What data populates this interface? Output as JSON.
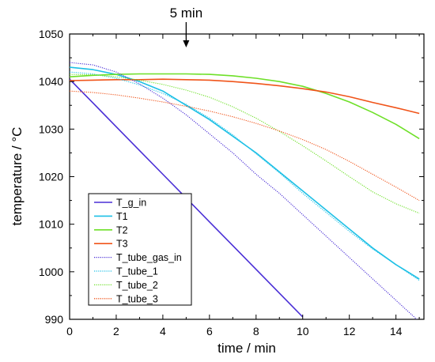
{
  "chart_data": {
    "type": "line",
    "xlabel": "time / min",
    "ylabel": "temperature / °C",
    "xlim": [
      0,
      15.2
    ],
    "ylim": [
      990,
      1050
    ],
    "xticks": [
      0,
      2,
      4,
      6,
      8,
      10,
      12,
      14
    ],
    "yticks": [
      990,
      1000,
      1010,
      1020,
      1030,
      1040,
      1050
    ],
    "annotation": {
      "label": "5 min",
      "x": 5
    },
    "legend_position": "bottom-left",
    "series": [
      {
        "name": "T_g_in",
        "style": "solid",
        "color": "#4a2fd6",
        "x": [
          0,
          1,
          2,
          3,
          4,
          5,
          6,
          7,
          8,
          9,
          10
        ],
        "y": [
          1040.5,
          1035.5,
          1030.5,
          1025.5,
          1020.5,
          1015.5,
          1010.5,
          1005.5,
          1000.5,
          995.5,
          990.5
        ]
      },
      {
        "name": "T1",
        "style": "solid",
        "color": "#1ec0e6",
        "x": [
          0,
          1,
          2,
          3,
          4,
          5,
          6,
          7,
          8,
          9,
          10,
          11,
          12,
          13,
          14,
          15
        ],
        "y": [
          1043.0,
          1042.5,
          1041.5,
          1040.0,
          1038.0,
          1035.0,
          1032.0,
          1028.5,
          1025.0,
          1021.0,
          1017.0,
          1013.0,
          1009.0,
          1005.0,
          1001.5,
          998.5
        ]
      },
      {
        "name": "T2",
        "style": "solid",
        "color": "#6ee028",
        "x": [
          0,
          1,
          2,
          3,
          4,
          5,
          6,
          7,
          8,
          9,
          10,
          11,
          12,
          13,
          14,
          15
        ],
        "y": [
          1041.0,
          1041.3,
          1041.5,
          1041.6,
          1041.6,
          1041.6,
          1041.5,
          1041.2,
          1040.7,
          1040.0,
          1039.0,
          1037.5,
          1035.7,
          1033.5,
          1031.0,
          1028.0
        ]
      },
      {
        "name": "T3",
        "style": "solid",
        "color": "#f0541a",
        "x": [
          0,
          1,
          2,
          3,
          4,
          5,
          6,
          7,
          8,
          9,
          10,
          11,
          12,
          13,
          14,
          15
        ],
        "y": [
          1040.2,
          1040.3,
          1040.4,
          1040.4,
          1040.5,
          1040.4,
          1040.3,
          1040.0,
          1039.6,
          1039.1,
          1038.5,
          1037.8,
          1036.8,
          1035.6,
          1034.5,
          1033.3
        ]
      },
      {
        "name": "T_tube_gas_in",
        "style": "dotted",
        "color": "#4a2fd6",
        "x": [
          0,
          1,
          2,
          3,
          4,
          5,
          6,
          7,
          8,
          9,
          10,
          11,
          12,
          13,
          14,
          15
        ],
        "y": [
          1044.0,
          1043.5,
          1042.0,
          1039.5,
          1036.5,
          1033.0,
          1029.0,
          1025.0,
          1020.5,
          1016.5,
          1012.0,
          1007.5,
          1003.0,
          998.5,
          994.0,
          989.5
        ]
      },
      {
        "name": "T_tube_1",
        "style": "dotted",
        "color": "#1ec0e6",
        "x": [
          0,
          1,
          2,
          3,
          4,
          5,
          6,
          7,
          8,
          9,
          10,
          11,
          12,
          13,
          14,
          15
        ],
        "y": [
          1042.0,
          1041.6,
          1040.7,
          1039.3,
          1037.5,
          1035.2,
          1032.3,
          1028.8,
          1024.8,
          1020.8,
          1016.5,
          1012.5,
          1008.5,
          1004.8,
          1001.5,
          998.2
        ]
      },
      {
        "name": "T_tube_2",
        "style": "dotted",
        "color": "#6ee028",
        "x": [
          0,
          1,
          2,
          3,
          4,
          5,
          6,
          7,
          8,
          9,
          10,
          11,
          12,
          13,
          14,
          15
        ],
        "y": [
          1041.5,
          1041.4,
          1041.0,
          1040.3,
          1039.4,
          1038.2,
          1036.7,
          1034.7,
          1032.3,
          1029.5,
          1026.5,
          1023.3,
          1020.0,
          1016.8,
          1014.3,
          1012.3
        ]
      },
      {
        "name": "T_tube_3",
        "style": "dotted",
        "color": "#f0541a",
        "x": [
          0,
          1,
          2,
          3,
          4,
          5,
          6,
          7,
          8,
          9,
          10,
          11,
          12,
          13,
          14,
          15
        ],
        "y": [
          1038.0,
          1037.7,
          1037.2,
          1036.5,
          1035.7,
          1034.8,
          1033.8,
          1032.6,
          1031.2,
          1029.6,
          1027.8,
          1025.7,
          1023.2,
          1020.5,
          1017.8,
          1015.0
        ]
      }
    ]
  }
}
